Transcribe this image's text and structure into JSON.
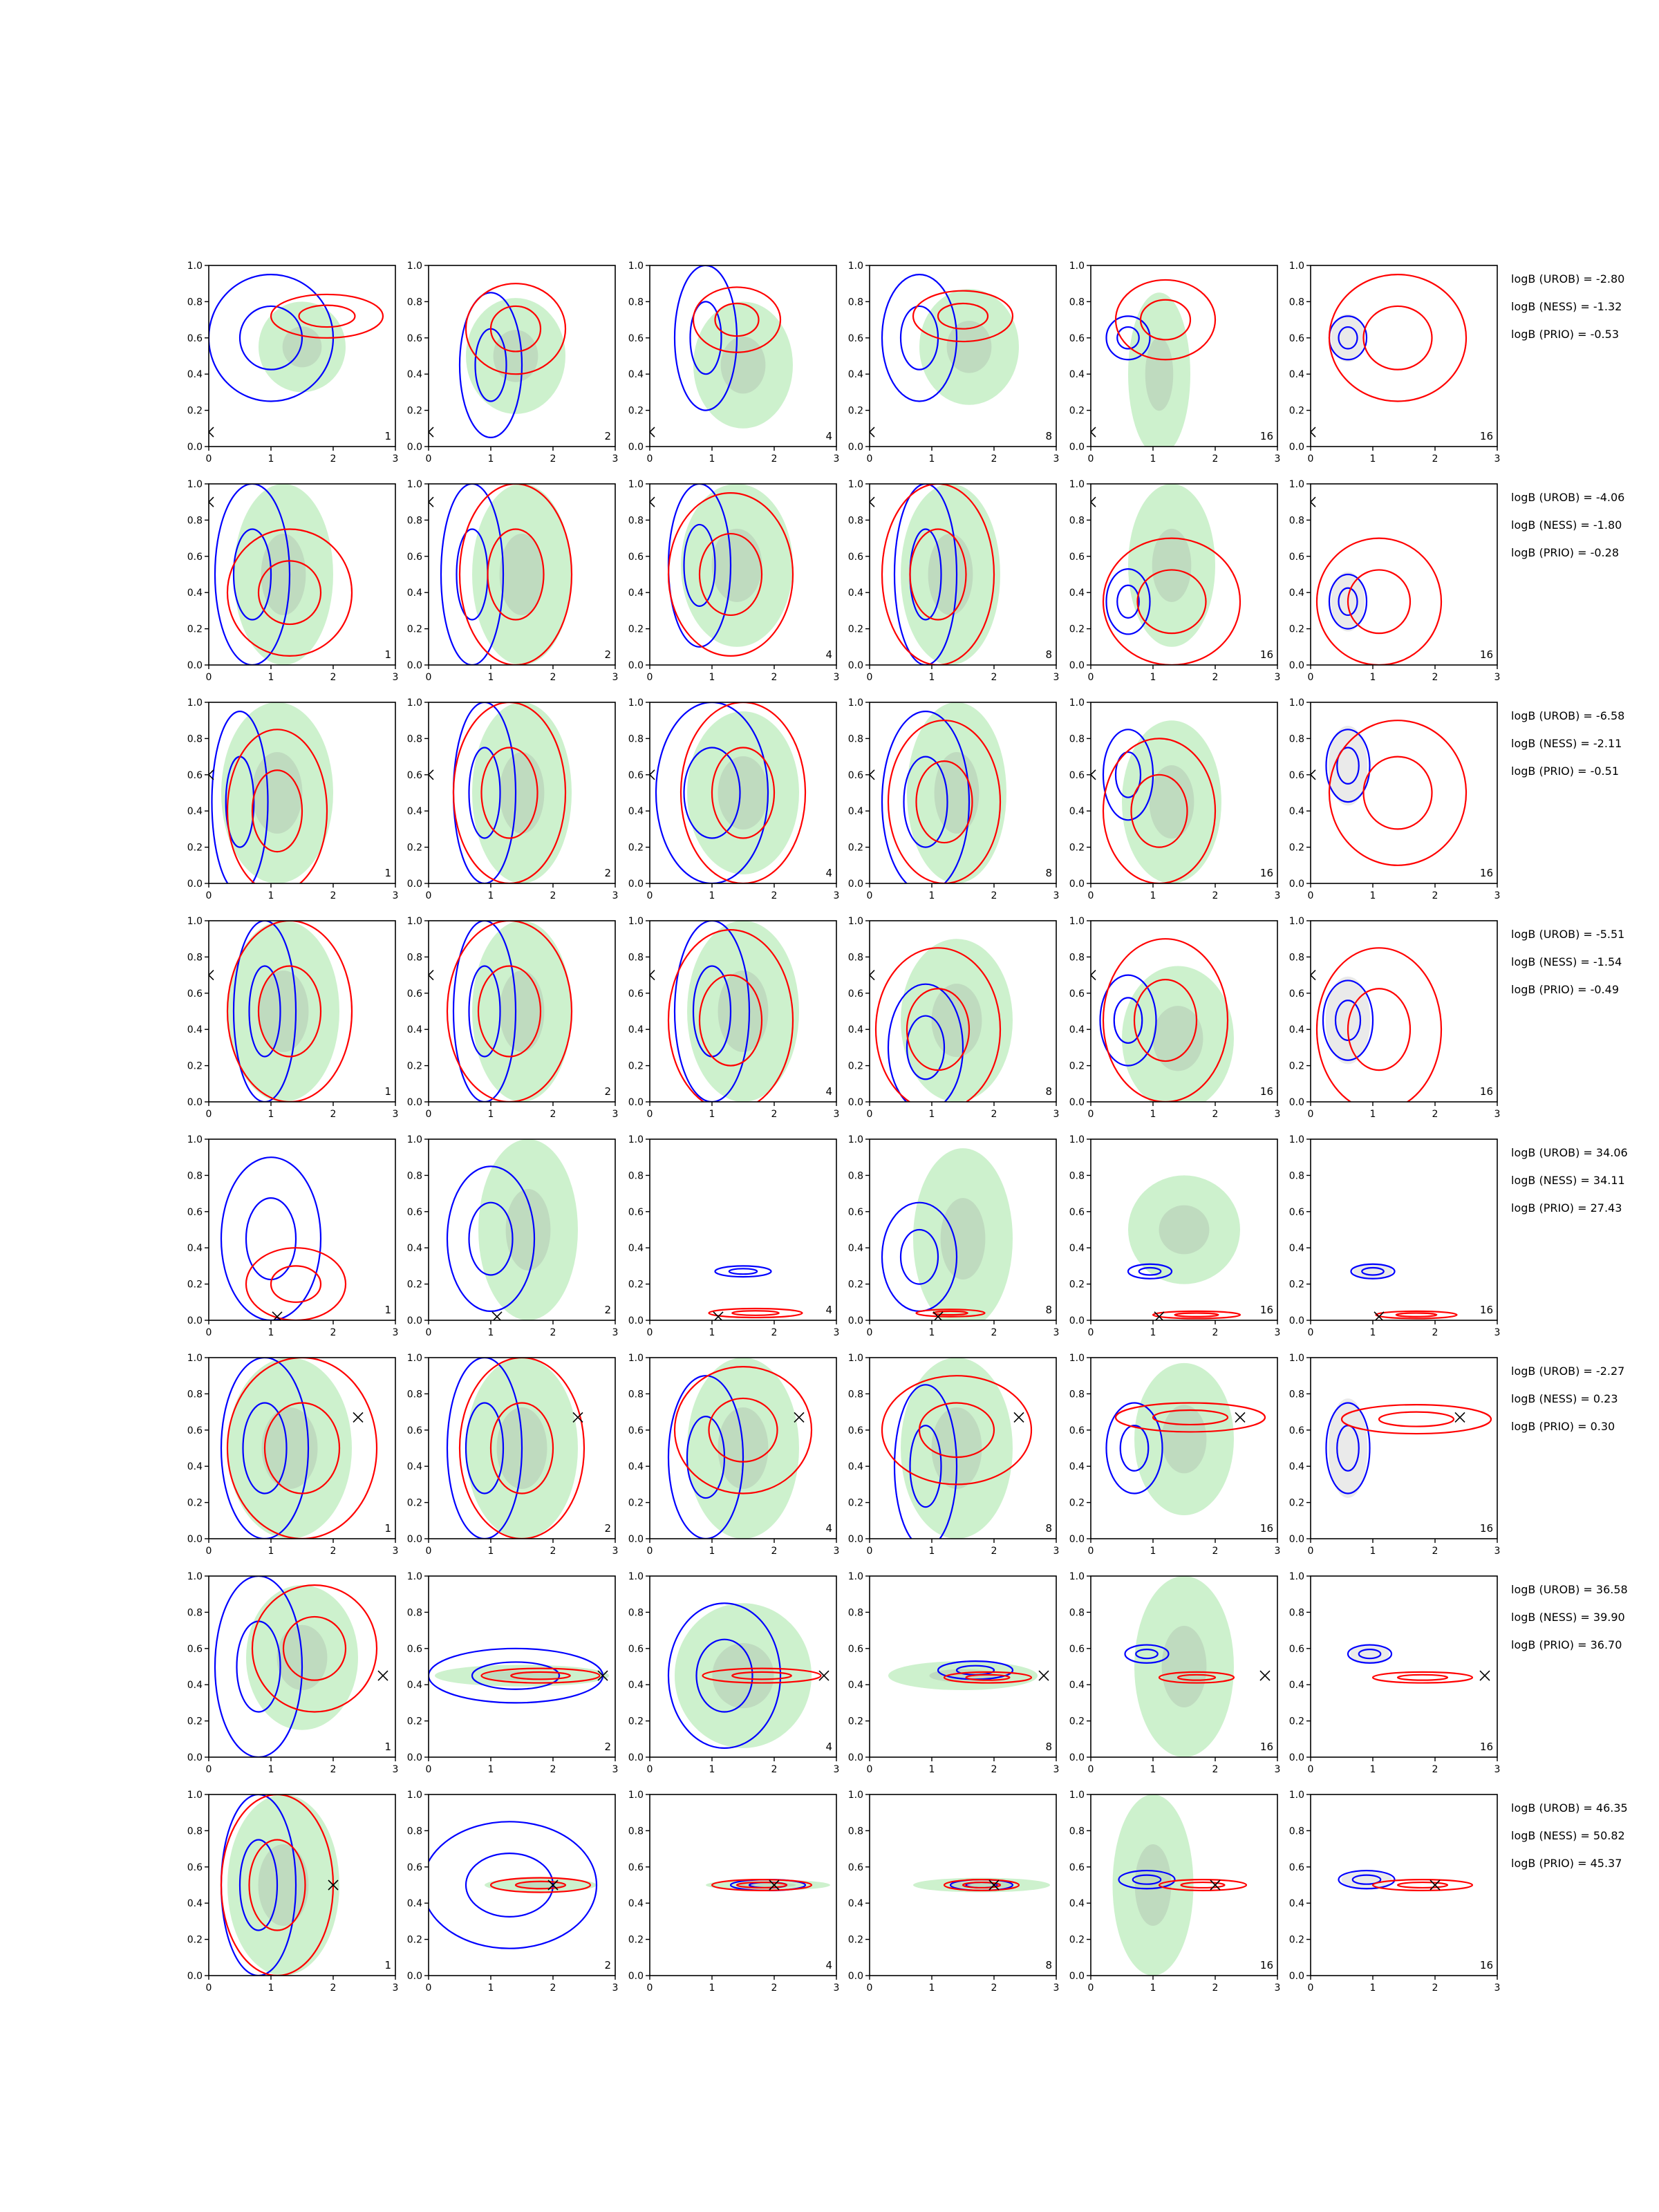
{
  "chart_data": {
    "type": "contour",
    "grid": false,
    "x_ticks": [
      "0",
      "1",
      "2",
      "3"
    ],
    "y_ticks": [
      "0.0",
      "0.2",
      "0.4",
      "0.6",
      "0.8",
      "1.0"
    ],
    "xlim": [
      0,
      3
    ],
    "ylim": [
      0,
      1
    ],
    "colors": {
      "fill_outer": "#c8f0c8",
      "fill_inner": "#b4c8b4",
      "blue": "#0000ff",
      "red": "#ff0000",
      "marker": "#000000"
    },
    "panel_labels": [
      "1",
      "2",
      "4",
      "8",
      "16",
      "16"
    ],
    "rows": [
      {
        "truth": [
          0.0,
          0.08
        ],
        "logb": [
          "logB (UROB) = -2.80",
          "logB (NESS) = -1.32",
          "logB (PRIO) = -0.53"
        ],
        "green": [
          [
            1.5,
            0.55,
            0.7,
            0.25
          ],
          [
            1.4,
            0.5,
            0.8,
            0.32
          ],
          [
            1.5,
            0.45,
            0.8,
            0.35
          ],
          [
            1.6,
            0.55,
            0.8,
            0.32
          ],
          [
            1.1,
            0.4,
            0.5,
            0.45
          ],
          null
        ],
        "blue": [
          [
            1.0,
            0.6,
            1.0,
            0.35
          ],
          [
            1.0,
            0.45,
            0.5,
            0.4
          ],
          [
            0.9,
            0.6,
            0.5,
            0.4
          ],
          [
            0.8,
            0.6,
            0.6,
            0.35
          ],
          [
            0.6,
            0.6,
            0.35,
            0.12
          ],
          [
            0.6,
            0.6,
            0.3,
            0.12
          ]
        ],
        "red": [
          [
            1.9,
            0.72,
            0.9,
            0.12
          ],
          [
            1.4,
            0.65,
            0.8,
            0.25
          ],
          [
            1.4,
            0.7,
            0.7,
            0.18
          ],
          [
            1.5,
            0.72,
            0.8,
            0.14
          ],
          [
            1.2,
            0.7,
            0.8,
            0.22
          ],
          [
            1.4,
            0.6,
            1.1,
            0.35
          ]
        ]
      },
      {
        "truth": [
          0.0,
          0.9
        ],
        "logb": [
          "logB (UROB) = -4.06",
          "logB (NESS) = -1.80",
          "logB (PRIO) = -0.28"
        ],
        "green": [
          [
            1.2,
            0.5,
            0.8,
            0.5
          ],
          [
            1.5,
            0.5,
            0.8,
            0.5
          ],
          [
            1.4,
            0.55,
            0.9,
            0.45
          ],
          [
            1.3,
            0.5,
            0.8,
            0.5
          ],
          [
            1.3,
            0.55,
            0.7,
            0.45
          ],
          null
        ],
        "blue": [
          [
            0.7,
            0.5,
            0.6,
            0.5
          ],
          [
            0.7,
            0.5,
            0.5,
            0.5
          ],
          [
            0.8,
            0.55,
            0.5,
            0.45
          ],
          [
            0.9,
            0.5,
            0.5,
            0.5
          ],
          [
            0.6,
            0.35,
            0.35,
            0.18
          ],
          [
            0.6,
            0.35,
            0.3,
            0.15
          ]
        ],
        "red": [
          [
            1.3,
            0.4,
            1.0,
            0.35
          ],
          [
            1.4,
            0.5,
            0.9,
            0.5
          ],
          [
            1.3,
            0.5,
            1.0,
            0.45
          ],
          [
            1.1,
            0.5,
            0.9,
            0.5
          ],
          [
            1.3,
            0.35,
            1.1,
            0.35
          ],
          [
            1.1,
            0.35,
            1.0,
            0.35
          ]
        ]
      },
      {
        "truth": [
          0.0,
          0.6
        ],
        "logb": [
          "logB (UROB) = -6.58",
          "logB (NESS) = -2.11",
          "logB (PRIO) = -0.51"
        ],
        "green": [
          [
            1.1,
            0.5,
            0.9,
            0.5
          ],
          [
            1.5,
            0.5,
            0.8,
            0.5
          ],
          [
            1.5,
            0.5,
            0.9,
            0.45
          ],
          [
            1.4,
            0.5,
            0.8,
            0.5
          ],
          [
            1.3,
            0.45,
            0.8,
            0.45
          ],
          null
        ],
        "blue": [
          [
            0.5,
            0.45,
            0.45,
            0.5
          ],
          [
            0.9,
            0.5,
            0.5,
            0.5
          ],
          [
            1.0,
            0.5,
            0.9,
            0.5
          ],
          [
            0.9,
            0.45,
            0.7,
            0.5
          ],
          [
            0.6,
            0.6,
            0.4,
            0.25
          ],
          [
            0.6,
            0.65,
            0.35,
            0.2
          ]
        ],
        "red": [
          [
            1.1,
            0.4,
            0.8,
            0.45
          ],
          [
            1.3,
            0.5,
            0.9,
            0.5
          ],
          [
            1.5,
            0.5,
            1.0,
            0.5
          ],
          [
            1.2,
            0.45,
            0.9,
            0.45
          ],
          [
            1.1,
            0.4,
            0.9,
            0.4
          ],
          [
            1.4,
            0.5,
            1.1,
            0.4
          ]
        ]
      },
      {
        "truth": [
          0.0,
          0.7
        ],
        "logb": [
          "logB (UROB) = -5.51",
          "logB (NESS) = -1.54",
          "logB (PRIO) = -0.49"
        ],
        "green": [
          [
            1.2,
            0.5,
            0.9,
            0.5
          ],
          [
            1.5,
            0.5,
            0.8,
            0.5
          ],
          [
            1.5,
            0.5,
            0.9,
            0.5
          ],
          [
            1.4,
            0.45,
            0.9,
            0.45
          ],
          [
            1.4,
            0.35,
            0.9,
            0.4
          ],
          null
        ],
        "blue": [
          [
            0.9,
            0.5,
            0.5,
            0.5
          ],
          [
            0.9,
            0.5,
            0.5,
            0.5
          ],
          [
            1.0,
            0.5,
            0.6,
            0.5
          ],
          [
            0.9,
            0.3,
            0.6,
            0.35
          ],
          [
            0.6,
            0.45,
            0.45,
            0.25
          ],
          [
            0.6,
            0.45,
            0.4,
            0.22
          ]
        ],
        "red": [
          [
            1.3,
            0.5,
            1.0,
            0.5
          ],
          [
            1.3,
            0.5,
            1.0,
            0.5
          ],
          [
            1.3,
            0.45,
            1.0,
            0.5
          ],
          [
            1.1,
            0.4,
            1.0,
            0.45
          ],
          [
            1.2,
            0.45,
            1.0,
            0.45
          ],
          [
            1.1,
            0.4,
            1.0,
            0.45
          ]
        ]
      },
      {
        "truth": [
          1.1,
          0.02
        ],
        "logb": [
          "logB (UROB) = 34.06",
          "logB (NESS) = 34.11",
          "logB (PRIO) = 27.43"
        ],
        "green": [
          null,
          [
            1.6,
            0.5,
            0.8,
            0.5
          ],
          null,
          [
            1.5,
            0.45,
            0.8,
            0.5
          ],
          [
            1.5,
            0.5,
            0.9,
            0.3
          ],
          null
        ],
        "blue": [
          [
            1.0,
            0.45,
            0.8,
            0.45
          ],
          [
            1.0,
            0.45,
            0.7,
            0.4
          ],
          [
            1.5,
            0.27,
            0.45,
            0.03
          ],
          [
            0.8,
            0.35,
            0.6,
            0.3
          ],
          [
            0.95,
            0.27,
            0.35,
            0.04
          ],
          [
            1.0,
            0.27,
            0.35,
            0.04
          ]
        ],
        "red": [
          [
            1.4,
            0.2,
            0.8,
            0.2
          ],
          null,
          [
            1.7,
            0.04,
            0.75,
            0.025
          ],
          [
            1.3,
            0.04,
            0.55,
            0.02
          ],
          [
            1.7,
            0.03,
            0.7,
            0.02
          ],
          [
            1.7,
            0.03,
            0.65,
            0.02
          ]
        ]
      },
      {
        "truth": [
          2.4,
          0.67
        ],
        "logb": [
          "logB (UROB) = -2.27",
          "logB (NESS) = 0.23",
          "logB (PRIO) = 0.30"
        ],
        "green": [
          [
            1.3,
            0.5,
            1.0,
            0.5
          ],
          [
            1.5,
            0.5,
            0.9,
            0.5
          ],
          [
            1.5,
            0.5,
            0.9,
            0.5
          ],
          [
            1.4,
            0.5,
            0.9,
            0.5
          ],
          [
            1.5,
            0.55,
            0.8,
            0.42
          ],
          null
        ],
        "blue": [
          [
            0.9,
            0.5,
            0.7,
            0.5
          ],
          [
            0.9,
            0.5,
            0.6,
            0.5
          ],
          [
            0.9,
            0.45,
            0.6,
            0.45
          ],
          [
            0.9,
            0.4,
            0.5,
            0.45
          ],
          [
            0.7,
            0.5,
            0.45,
            0.25
          ],
          [
            0.6,
            0.5,
            0.35,
            0.25
          ]
        ],
        "red": [
          [
            1.5,
            0.5,
            1.2,
            0.5
          ],
          [
            1.5,
            0.5,
            1.0,
            0.5
          ],
          [
            1.5,
            0.6,
            1.1,
            0.35
          ],
          [
            1.4,
            0.6,
            1.2,
            0.3
          ],
          [
            1.6,
            0.67,
            1.2,
            0.08
          ],
          [
            1.7,
            0.66,
            1.2,
            0.08
          ]
        ]
      },
      {
        "truth": [
          2.8,
          0.45
        ],
        "logb": [
          "logB (UROB) = 36.58",
          "logB (NESS) = 39.90",
          "logB (PRIO) = 36.70"
        ],
        "green": [
          [
            1.5,
            0.55,
            0.9,
            0.4
          ],
          [
            1.5,
            0.45,
            1.4,
            0.06
          ],
          [
            1.5,
            0.45,
            1.1,
            0.4
          ],
          [
            1.5,
            0.45,
            1.2,
            0.08
          ],
          [
            1.5,
            0.5,
            0.8,
            0.5
          ],
          null
        ],
        "blue": [
          [
            0.8,
            0.5,
            0.7,
            0.5
          ],
          [
            1.4,
            0.45,
            1.4,
            0.15
          ],
          [
            1.2,
            0.45,
            0.9,
            0.4
          ],
          [
            1.7,
            0.48,
            0.6,
            0.05
          ],
          [
            0.9,
            0.57,
            0.35,
            0.05
          ],
          [
            0.95,
            0.57,
            0.35,
            0.05
          ]
        ],
        "red": [
          [
            1.7,
            0.6,
            1.0,
            0.35
          ],
          [
            1.8,
            0.45,
            0.95,
            0.04
          ],
          [
            1.8,
            0.45,
            0.95,
            0.04
          ],
          [
            1.9,
            0.44,
            0.7,
            0.03
          ],
          [
            1.7,
            0.44,
            0.6,
            0.03
          ],
          [
            1.8,
            0.44,
            0.8,
            0.03
          ]
        ]
      },
      {
        "truth": [
          2.0,
          0.5
        ],
        "logb": [
          "logB (UROB) = 46.35",
          "logB (NESS) = 50.82",
          "logB (PRIO) = 45.37"
        ],
        "green": [
          [
            1.2,
            0.5,
            0.9,
            0.5
          ],
          [
            1.8,
            0.5,
            0.9,
            0.04
          ],
          [
            1.9,
            0.5,
            1.0,
            0.03
          ],
          [
            1.8,
            0.5,
            1.1,
            0.04
          ],
          [
            1.0,
            0.5,
            0.65,
            0.5
          ],
          null
        ],
        "blue": [
          [
            0.8,
            0.5,
            0.6,
            0.5
          ],
          [
            1.3,
            0.5,
            1.4,
            0.35
          ],
          [
            1.9,
            0.5,
            0.6,
            0.03
          ],
          [
            1.8,
            0.5,
            0.5,
            0.03
          ],
          [
            0.9,
            0.53,
            0.45,
            0.05
          ],
          [
            0.9,
            0.53,
            0.45,
            0.05
          ]
        ],
        "red": [
          [
            1.1,
            0.5,
            0.9,
            0.5
          ],
          [
            1.8,
            0.5,
            0.8,
            0.04
          ],
          [
            1.8,
            0.5,
            0.8,
            0.03
          ],
          [
            1.8,
            0.5,
            0.6,
            0.03
          ],
          [
            1.8,
            0.5,
            0.7,
            0.03
          ],
          [
            1.8,
            0.5,
            0.8,
            0.03
          ]
        ]
      }
    ]
  }
}
